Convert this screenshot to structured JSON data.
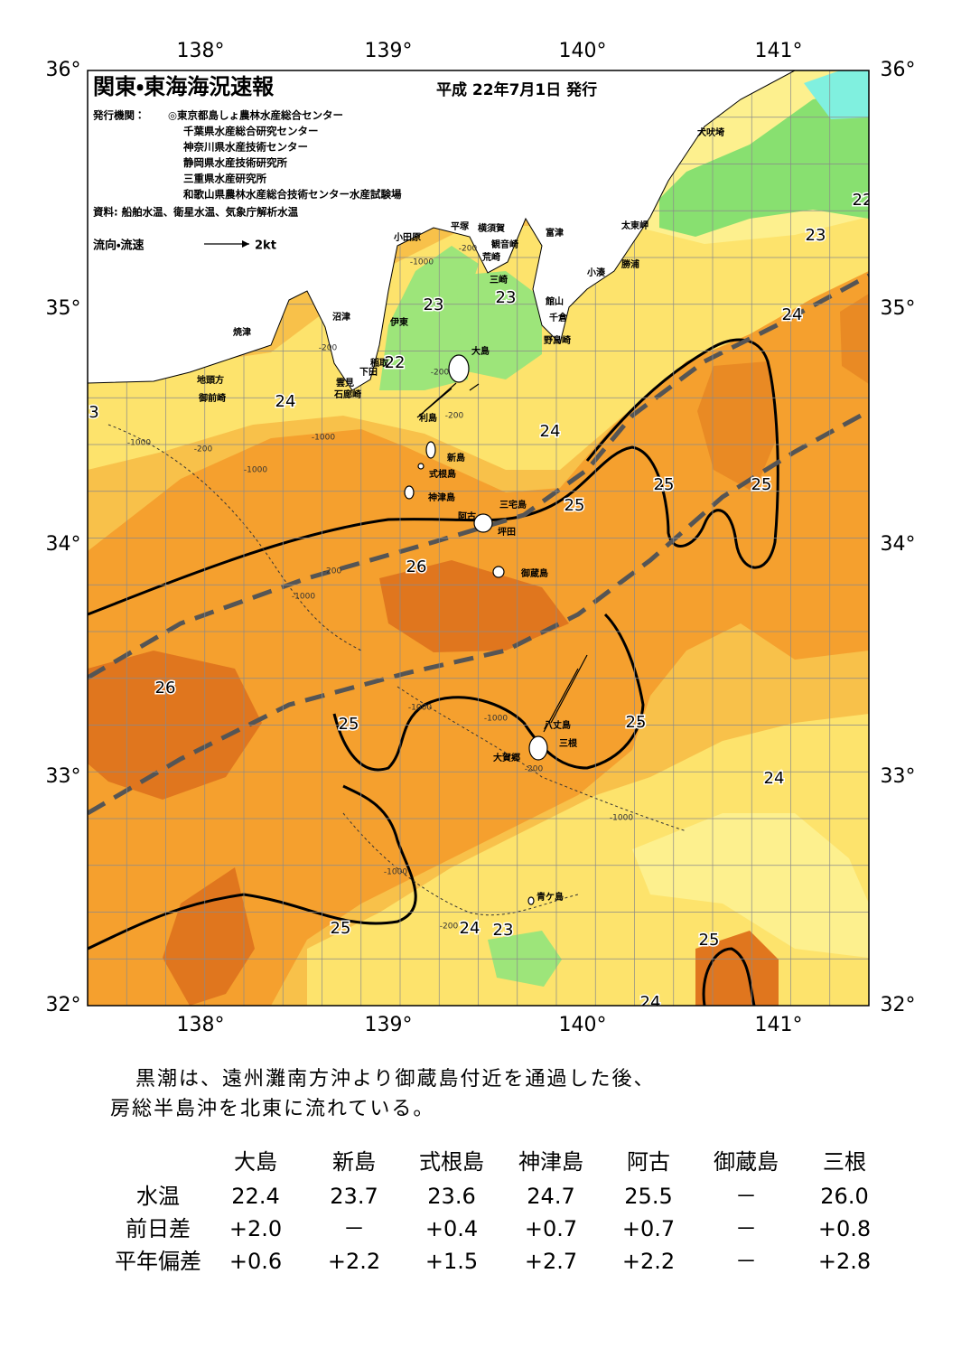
{
  "header": {
    "title": "関東・東海海況速報",
    "date": "平成 22年7月1日 発行",
    "issuer_label": "発行機関：",
    "issuers": [
      "◎東京都島しょ農林水産総合センター",
      "千葉県水産総合研究センター",
      "神奈川県水産技術センター",
      "静岡県水産技術研究所",
      "三重県水産研究所",
      "和歌山県農林水産総合技術センター水産試験場"
    ],
    "source": "資料: 船舶水温、衛星水温、気象庁解析水温",
    "legend_label": "流向・流速",
    "legend_speed": "2kt"
  },
  "map": {
    "lon_labels": [
      "138°",
      "139°",
      "140°",
      "141°"
    ],
    "lat_labels": [
      "36°",
      "35°",
      "34°",
      "33°",
      "32°"
    ],
    "contour_labels": [
      "23",
      "23",
      "22",
      "24",
      "24",
      "25",
      "25",
      "25",
      "24",
      "23",
      "22",
      "26",
      "26",
      "25",
      "25",
      "24",
      "25",
      "24",
      "23",
      "25",
      "24",
      "3"
    ],
    "depth_labels": [
      "-200",
      "-1000",
      "-200",
      "-200",
      "-200",
      "-1000",
      "-200",
      "-1000",
      "-1000",
      "-200",
      "-1000",
      "-1000",
      "-1000",
      "-200",
      "-1000",
      "-1000",
      "-200"
    ],
    "place_names": [
      "犬吠埼",
      "太東岬",
      "富津",
      "勝浦",
      "小湊",
      "横須賀",
      "平塚",
      "観音崎",
      "小田原",
      "荒崎",
      "三崎",
      "館山",
      "千倉",
      "野島崎",
      "沼津",
      "伊東",
      "焼津",
      "大島",
      "稲取",
      "下田",
      "雲見",
      "石廊崎",
      "地頭方",
      "御前崎",
      "利島",
      "新島",
      "式根島",
      "神津島",
      "三宅島",
      "阿古",
      "坪田",
      "御蔵島",
      "八丈島",
      "三根",
      "大賀郷",
      "青ケ島"
    ]
  },
  "description": [
    "黒潮は、遠州灘南方沖より御蔵島付近を通過した後、",
    "房総半島沖を北東に流れている。"
  ],
  "table": {
    "columns": [
      "大島",
      "新島",
      "式根島",
      "神津島",
      "阿古",
      "御蔵島",
      "三根"
    ],
    "rows": [
      {
        "label": "水温",
        "cells": [
          "22.4",
          "23.7",
          "23.6",
          "24.7",
          "25.5",
          "－",
          "26.0"
        ]
      },
      {
        "label": "前日差",
        "cells": [
          "+2.0",
          "－",
          "+0.4",
          "+0.7",
          "+0.7",
          "－",
          "+0.8"
        ]
      },
      {
        "label": "平年偏差",
        "cells": [
          "+0.6",
          "+2.2",
          "+1.5",
          "+2.7",
          "+2.2",
          "－",
          "+2.8"
        ]
      }
    ]
  }
}
